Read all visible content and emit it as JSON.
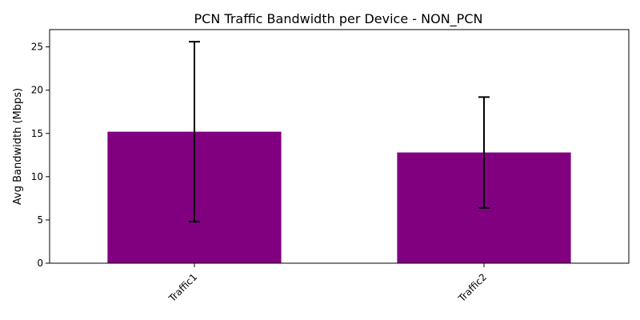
{
  "chart_data": {
    "type": "bar",
    "title": "PCN Traffic Bandwidth per Device - NON_PCN",
    "xlabel": "",
    "ylabel": "Avg Bandwidth (Mbps)",
    "categories": [
      "Traffic1",
      "Traffic2"
    ],
    "values": [
      15.2,
      12.8
    ],
    "error": [
      10.4,
      6.4
    ],
    "ylim": [
      0,
      27
    ],
    "yticks": [
      0,
      5,
      10,
      15,
      20,
      25
    ],
    "bar_color": "#800080",
    "error_color": "#000000",
    "grid": false,
    "legend": "none",
    "xtick_rotation": 45
  }
}
